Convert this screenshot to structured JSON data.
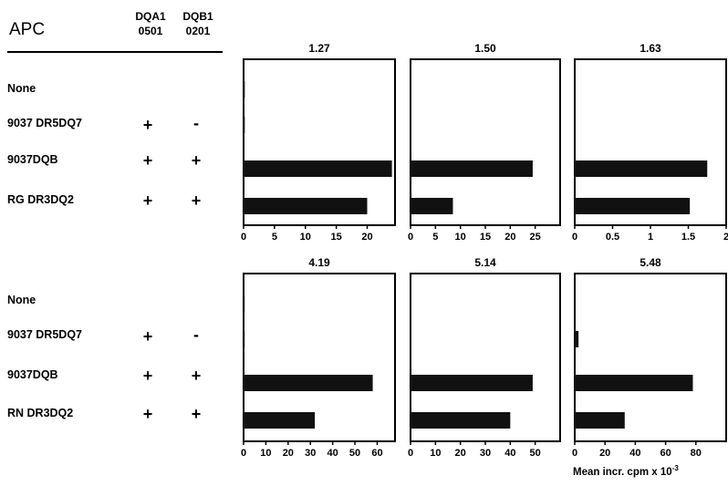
{
  "header": {
    "apc_label": "APC",
    "col1": {
      "line1": "DQA1",
      "line2": "0501"
    },
    "col2": {
      "line1": "DQB1",
      "line2": "0201"
    }
  },
  "row_groups": [
    {
      "rows": [
        {
          "label": "None",
          "col1": "",
          "col2": ""
        },
        {
          "label": "9037 DR5DQ7",
          "col1": "+",
          "col2": "-"
        },
        {
          "label": "9037DQB",
          "col1": "+",
          "col2": "+"
        },
        {
          "label": "RG DR3DQ2",
          "col1": "+",
          "col2": "+"
        }
      ]
    },
    {
      "rows": [
        {
          "label": "None",
          "col1": "",
          "col2": ""
        },
        {
          "label": "9037 DR5DQ7",
          "col1": "+",
          "col2": "-"
        },
        {
          "label": "9037DQB",
          "col1": "+",
          "col2": "+"
        },
        {
          "label": "RN DR3DQ2",
          "col1": "+",
          "col2": "+"
        }
      ]
    }
  ],
  "unit_label": {
    "text": "Mean incr. cpm x 10",
    "exponent": "-3"
  },
  "chart_data": [
    {
      "type": "bar",
      "title": "1.27",
      "categories": [
        "None",
        "9037 DR5DQ7",
        "9037DQB",
        "RG DR3DQ2"
      ],
      "values": [
        0.2,
        0.2,
        24,
        20
      ],
      "xlim": [
        0,
        24.5
      ],
      "ticks": [
        0,
        5,
        10,
        15,
        20
      ],
      "tick_labels": [
        "0",
        "5",
        "10",
        "15",
        "20"
      ]
    },
    {
      "type": "bar",
      "title": "1.50",
      "categories": [
        "None",
        "9037 DR5DQ7",
        "9037DQB",
        "RG DR3DQ2"
      ],
      "values": [
        0,
        0,
        24.5,
        8.5
      ],
      "xlim": [
        0,
        30
      ],
      "ticks": [
        0,
        5,
        10,
        15,
        20,
        25
      ],
      "tick_labels": [
        "0",
        "5",
        "10",
        "15",
        "20",
        "25"
      ]
    },
    {
      "type": "bar",
      "title": "1.63",
      "categories": [
        "None",
        "9037 DR5DQ7",
        "9037DQB",
        "RG DR3DQ2"
      ],
      "values": [
        0,
        0,
        1.75,
        1.52
      ],
      "xlim": [
        0,
        2
      ],
      "ticks": [
        0,
        0.5,
        1,
        1.5,
        2
      ],
      "tick_labels": [
        "0",
        "0.5",
        "1",
        "1.5",
        "2"
      ]
    },
    {
      "type": "bar",
      "title": "4.19",
      "categories": [
        "None",
        "9037 DR5DQ7",
        "9037DQB",
        "RN DR3DQ2"
      ],
      "values": [
        0.5,
        0.5,
        58,
        32
      ],
      "xlim": [
        0,
        68
      ],
      "ticks": [
        0,
        10,
        20,
        30,
        40,
        50,
        60
      ],
      "tick_labels": [
        "0",
        "10",
        "20",
        "30",
        "40",
        "50",
        "60"
      ]
    },
    {
      "type": "bar",
      "title": "5.14",
      "categories": [
        "None",
        "9037 DR5DQ7",
        "9037DQB",
        "RN DR3DQ2"
      ],
      "values": [
        0,
        0,
        49,
        40
      ],
      "xlim": [
        0,
        60
      ],
      "ticks": [
        0,
        10,
        20,
        30,
        40,
        50
      ],
      "tick_labels": [
        "0",
        "10",
        "20",
        "30",
        "40",
        "50"
      ]
    },
    {
      "type": "bar",
      "title": "5.48",
      "categories": [
        "None",
        "9037 DR5DQ7",
        "9037DQB",
        "RN DR3DQ2"
      ],
      "values": [
        0,
        2.5,
        78,
        33
      ],
      "xlim": [
        0,
        100
      ],
      "ticks": [
        0,
        20,
        40,
        60,
        80
      ],
      "tick_labels": [
        "0",
        "20",
        "40",
        "60",
        "80"
      ]
    }
  ]
}
